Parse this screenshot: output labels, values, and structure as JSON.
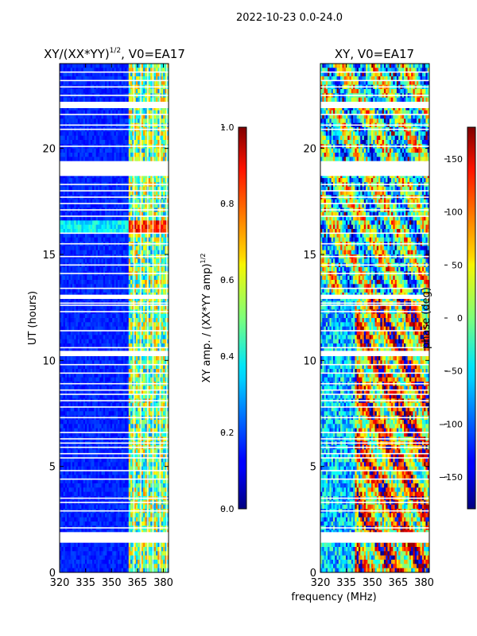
{
  "chart_data": {
    "suptitle": "2022-10-23 0.0-24.0",
    "xlabel": "frequency (MHz)",
    "ylabel": "UT (hours)",
    "panels": [
      {
        "type": "heatmap",
        "title": "XY/(XX*YY)",
        "title_sup": "1/2",
        "title_tail": ", V0=EA17",
        "xlim": [
          320,
          383
        ],
        "ylim": [
          0,
          24
        ],
        "xticks": [
          320,
          335,
          350,
          365,
          380
        ],
        "yticks": [
          0,
          5,
          10,
          15,
          20
        ],
        "colorbar": {
          "label": "XY amp. / (XX*YY amp)",
          "label_sup": "1/2",
          "range": [
            0.0,
            1.0
          ],
          "ticks": [
            "0.0",
            "0.2",
            "0.4",
            "0.6",
            "0.8",
            "1.0"
          ],
          "colormap": "jet"
        },
        "description_values": {
          "background_level": 0.12,
          "bright_band_mhz": [
            360,
            382
          ],
          "bright_band_level": 0.55,
          "flare_ut": [
            16.0,
            16.6
          ],
          "flare_level": 0.85
        }
      },
      {
        "type": "heatmap",
        "title": "XY, V0=EA17",
        "xlim": [
          320,
          383
        ],
        "ylim": [
          0,
          24
        ],
        "xticks": [
          320,
          335,
          350,
          365,
          380
        ],
        "yticks": [
          0,
          5,
          10,
          15,
          20
        ],
        "colorbar": {
          "label": "phase (deg)",
          "range": [
            -180,
            180
          ],
          "ticks": [
            "−150",
            "−100",
            "−50",
            "0",
            "50",
            "100",
            "150"
          ],
          "colormap": "jet"
        }
      }
    ],
    "flagged_ut_ranges": [
      [
        1.4,
        1.9
      ],
      [
        18.7,
        19.4
      ],
      [
        21.9,
        22.2
      ],
      [
        10.2,
        10.45
      ],
      [
        12.9,
        13.1
      ]
    ],
    "flagged_ut_lines": [
      2.1,
      2.9,
      3.3,
      3.5,
      4.4,
      4.8,
      5.4,
      5.6,
      5.9,
      6.1,
      6.3,
      6.6,
      7.3,
      7.8,
      8.1,
      8.4,
      8.6,
      8.9,
      9.4,
      9.8,
      10.6,
      11.4,
      12.3,
      12.6,
      12.7,
      13.4,
      14.1,
      14.5,
      14.9,
      15.5,
      16.0,
      16.8,
      17.1,
      17.4,
      17.7,
      18.0,
      18.3,
      20.1,
      20.9,
      21.1,
      21.6,
      22.5,
      22.9,
      23.2,
      23.6
    ],
    "flagged_freq_lines_mhz": [
      363,
      367,
      371,
      374,
      378,
      382
    ]
  }
}
